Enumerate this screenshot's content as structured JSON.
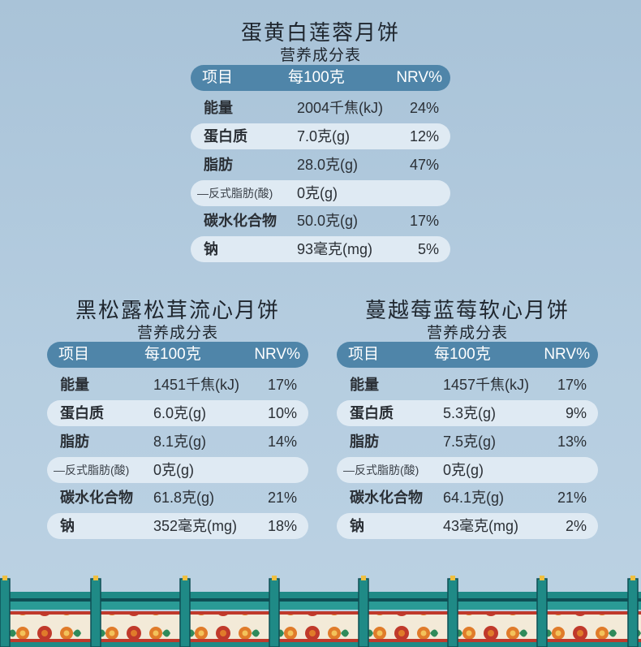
{
  "tables": [
    {
      "title": "蛋黄白莲蓉月饼",
      "subtitle": "营养成分表",
      "headers": [
        "项目",
        "每100克",
        "NRV%"
      ],
      "rows": [
        {
          "item": "能量",
          "value": "2004千焦(kJ)",
          "nrv": "24%"
        },
        {
          "item": "蛋白质",
          "value": "7.0克(g)",
          "nrv": "12%"
        },
        {
          "item": "脂肪",
          "value": "28.0克(g)",
          "nrv": "47%"
        },
        {
          "item": "—反式脂肪(酸)",
          "value": "0克(g)",
          "nrv": ""
        },
        {
          "item": "碳水化合物",
          "value": "50.0克(g)",
          "nrv": "17%"
        },
        {
          "item": "钠",
          "value": "93毫克(mg)",
          "nrv": "5%"
        }
      ]
    },
    {
      "title": "黑松露松茸流心月饼",
      "subtitle": "营养成分表",
      "headers": [
        "项目",
        "每100克",
        "NRV%"
      ],
      "rows": [
        {
          "item": "能量",
          "value": "1451千焦(kJ)",
          "nrv": "17%"
        },
        {
          "item": "蛋白质",
          "value": "6.0克(g)",
          "nrv": "10%"
        },
        {
          "item": "脂肪",
          "value": "8.1克(g)",
          "nrv": "14%"
        },
        {
          "item": "—反式脂肪(酸)",
          "value": "0克(g)",
          "nrv": ""
        },
        {
          "item": "碳水化合物",
          "value": "61.8克(g)",
          "nrv": "21%"
        },
        {
          "item": "钠",
          "value": "352毫克(mg)",
          "nrv": "18%"
        }
      ]
    },
    {
      "title": "蔓越莓蓝莓软心月饼",
      "subtitle": "营养成分表",
      "headers": [
        "项目",
        "每100克",
        "NRV%"
      ],
      "rows": [
        {
          "item": "能量",
          "value": "1457千焦(kJ)",
          "nrv": "17%"
        },
        {
          "item": "蛋白质",
          "value": "5.3克(g)",
          "nrv": "9%"
        },
        {
          "item": "脂肪",
          "value": "7.5克(g)",
          "nrv": "13%"
        },
        {
          "item": "—反式脂肪(酸)",
          "value": "0克(g)",
          "nrv": ""
        },
        {
          "item": "碳水化合物",
          "value": "64.1克(g)",
          "nrv": "21%"
        },
        {
          "item": "钠",
          "value": "43毫克(mg)",
          "nrv": "2%"
        }
      ]
    }
  ],
  "colors": {
    "background": "#b5cde0",
    "header": "#4f85a9",
    "row_alt": "#dfeaf3",
    "fence_teal": "#1f8a86",
    "fence_red": "#c0392b",
    "fence_orange": "#e07b2a"
  }
}
